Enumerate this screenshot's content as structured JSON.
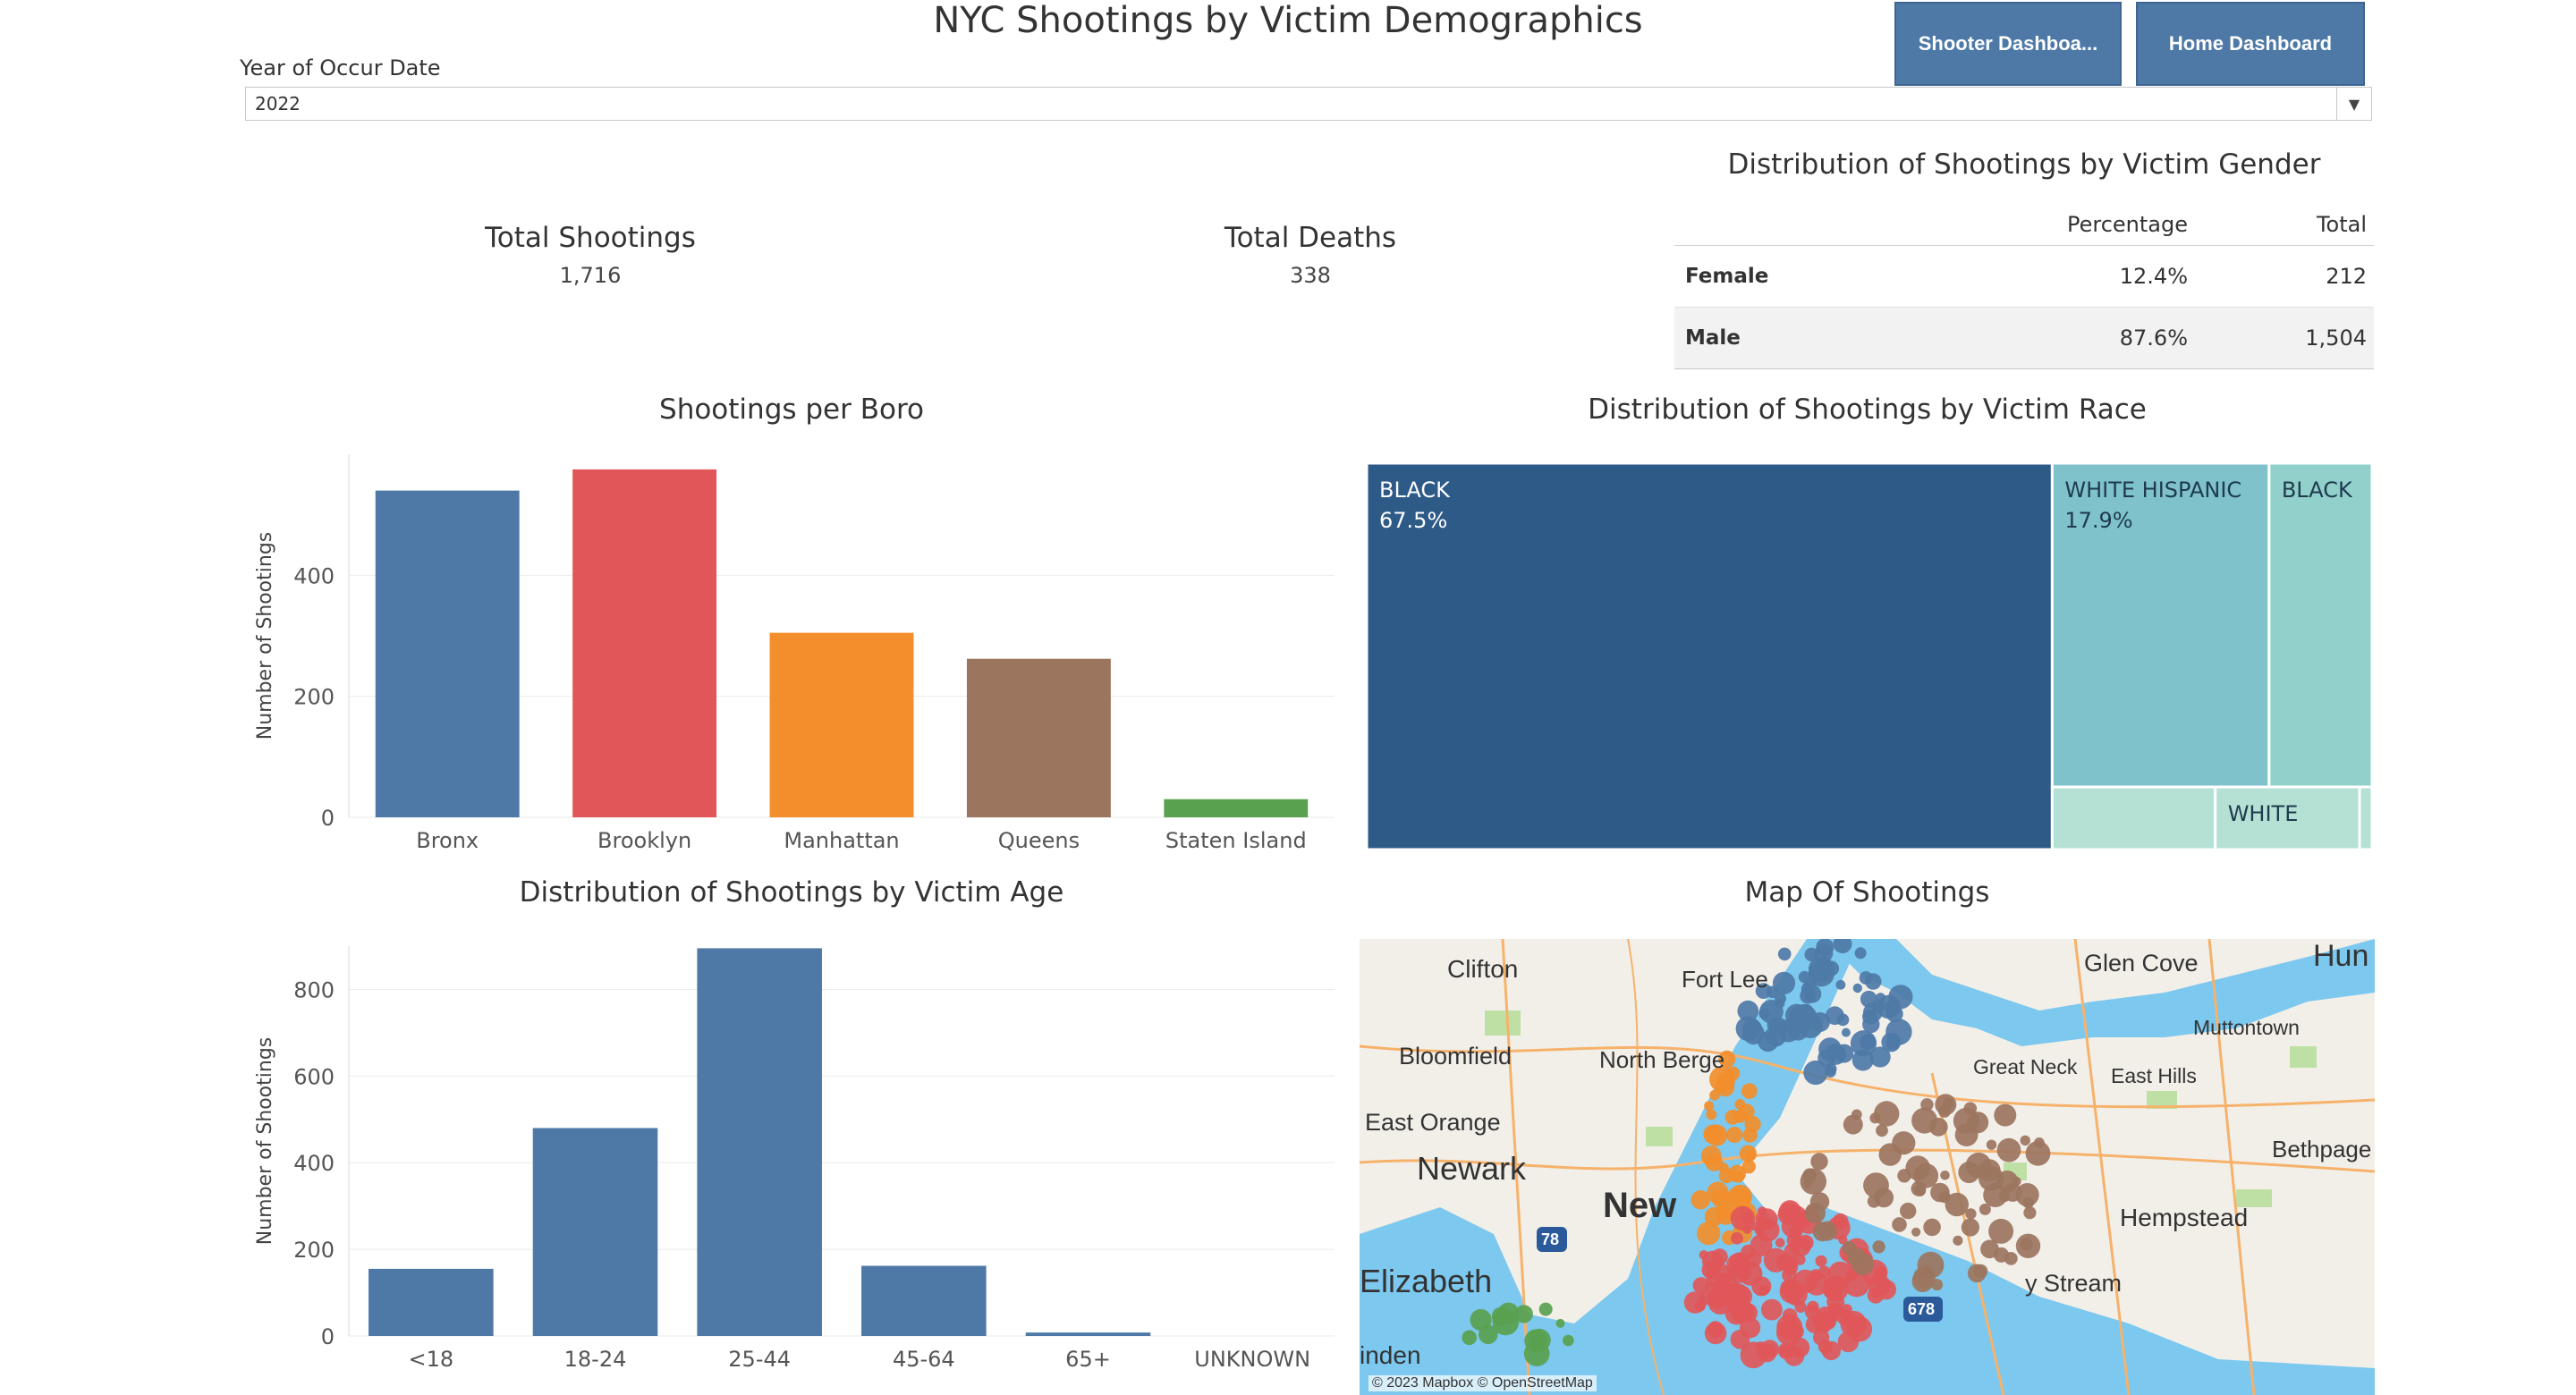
{
  "header": {
    "title": "NYC Shootings by Victim Demographics",
    "shooter_button": "Shooter Dashboa...",
    "home_button": "Home Dashboard"
  },
  "filter": {
    "label": "Year of Occur Date",
    "value": "2022"
  },
  "kpis": {
    "total_shootings_label": "Total Shootings",
    "total_shootings_value": "1,716",
    "total_deaths_label": "Total Deaths",
    "total_deaths_value": "338"
  },
  "gender_table": {
    "title": "Distribution of Shootings by Victim Gender",
    "columns": [
      "Percentage",
      "Total"
    ],
    "rows": [
      {
        "label": "Female",
        "percentage": "12.4%",
        "total": "212"
      },
      {
        "label": "Male",
        "percentage": "87.6%",
        "total": "1,504"
      }
    ]
  },
  "boro_chart_title": "Shootings per Boro",
  "race_chart_title": "Distribution of Shootings by Victim Race",
  "age_chart_title": "Distribution of Shootings by Victim Age",
  "map": {
    "title": "Map Of Shootings",
    "attribution": "© 2023 Mapbox © OpenStreetMap",
    "labels": [
      "Clifton",
      "Fort Lee",
      "Glen Cove",
      "Hun",
      "Muttontown",
      "Bloomfield",
      "North Berge",
      "Great Neck",
      "East Hills",
      "East Orange",
      "Bethpage",
      "Newark",
      "New",
      "Hempstead",
      "78",
      "Elizabeth",
      "678",
      "y Stream",
      "inden"
    ]
  },
  "chart_data": [
    {
      "type": "bar",
      "title": "Shootings per Boro",
      "xlabel": "",
      "ylabel": "Number of Shootings",
      "categories": [
        "Bronx",
        "Brooklyn",
        "Manhattan",
        "Queens",
        "Staten Island"
      ],
      "values": [
        540,
        575,
        305,
        262,
        30
      ],
      "colors": [
        "#4e79a7",
        "#e15759",
        "#f28e2b",
        "#9c755f",
        "#59a14f"
      ],
      "yticks": [
        0,
        200,
        400
      ],
      "ylim": [
        0,
        600
      ],
      "grid": true
    },
    {
      "type": "treemap",
      "title": "Distribution of Shootings by Victim Race",
      "items": [
        {
          "label": "BLACK",
          "value_label": "67.5%",
          "value": 67.5,
          "color": "#2e5a87"
        },
        {
          "label": "WHITE HISPANIC",
          "value_label": "17.9%",
          "value": 17.9,
          "color": "#7fc2cb"
        },
        {
          "label": "BLACK",
          "value_label": "",
          "value": 8.5,
          "color": "#92d0cc"
        },
        {
          "label": "",
          "value_label": "",
          "value": 2.6,
          "color": "#b5e1d5"
        },
        {
          "label": "WHITE",
          "value_label": "",
          "value": 2.3,
          "color": "#b5e1d5"
        },
        {
          "label": "",
          "value_label": "",
          "value": 0.2,
          "color": "#b5e1d5"
        }
      ]
    },
    {
      "type": "bar",
      "title": "Distribution of Shootings by Victim Age",
      "xlabel": "",
      "ylabel": "Number of Shootings",
      "categories": [
        "<18",
        "18-24",
        "25-44",
        "45-64",
        "65+",
        "UNKNOWN"
      ],
      "values": [
        155,
        480,
        895,
        162,
        8,
        0
      ],
      "colors": [
        "#4e79a7"
      ],
      "yticks": [
        0,
        200,
        400,
        600,
        800
      ],
      "ylim": [
        0,
        900
      ],
      "grid": true
    }
  ]
}
